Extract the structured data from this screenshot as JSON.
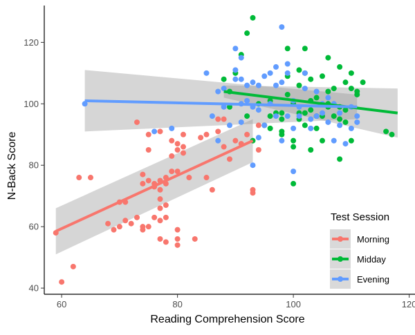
{
  "chart_data": {
    "type": "scatter",
    "title": "",
    "xlabel": "Reading Comprehension Score",
    "ylabel": "N-Back Score",
    "xlim": [
      57,
      121
    ],
    "ylim": [
      38,
      132
    ],
    "x_ticks": [
      60,
      80,
      100,
      120
    ],
    "y_ticks": [
      40,
      60,
      80,
      100,
      120
    ],
    "grid": false,
    "legend_position": "bottom-right",
    "legend_title": "Test Session",
    "series": [
      {
        "name": "Morning",
        "color": "#F8766D",
        "points": [
          [
            59,
            58
          ],
          [
            60,
            42
          ],
          [
            62,
            47
          ],
          [
            63,
            76
          ],
          [
            65,
            76
          ],
          [
            68,
            61
          ],
          [
            69,
            59
          ],
          [
            70,
            68
          ],
          [
            70,
            60
          ],
          [
            71,
            68
          ],
          [
            71,
            62
          ],
          [
            72,
            61
          ],
          [
            73,
            63
          ],
          [
            73,
            94
          ],
          [
            74,
            74
          ],
          [
            74,
            77
          ],
          [
            74,
            60
          ],
          [
            74,
            59
          ],
          [
            75,
            85
          ],
          [
            75,
            90
          ],
          [
            75,
            75
          ],
          [
            75,
            60
          ],
          [
            76,
            63
          ],
          [
            76,
            73
          ],
          [
            76,
            74
          ],
          [
            77,
            75
          ],
          [
            77,
            72
          ],
          [
            77,
            66
          ],
          [
            77,
            62
          ],
          [
            77,
            56
          ],
          [
            77,
            69
          ],
          [
            77,
            91
          ],
          [
            78,
            74
          ],
          [
            78,
            76
          ],
          [
            78,
            67
          ],
          [
            78,
            63
          ],
          [
            78,
            55
          ],
          [
            79,
            78
          ],
          [
            79,
            88
          ],
          [
            79,
            83
          ],
          [
            80,
            59
          ],
          [
            80,
            56
          ],
          [
            80,
            54
          ],
          [
            80,
            87
          ],
          [
            80,
            85
          ],
          [
            80,
            78
          ],
          [
            81,
            86
          ],
          [
            81,
            90
          ],
          [
            81,
            84
          ],
          [
            82,
            76
          ],
          [
            83,
            56
          ],
          [
            84,
            89
          ],
          [
            85,
            90
          ],
          [
            85,
            76
          ],
          [
            86,
            72
          ],
          [
            87,
            91
          ],
          [
            87,
            95
          ],
          [
            88,
            95
          ],
          [
            88,
            86
          ],
          [
            89,
            82
          ],
          [
            90,
            88
          ],
          [
            91,
            87
          ],
          [
            92,
            90
          ],
          [
            93,
            72
          ],
          [
            93,
            71
          ],
          [
            94,
            93
          ],
          [
            94,
            85
          ]
        ],
        "trend": {
          "x": [
            59,
            93
          ],
          "y": [
            58.5,
            88
          ]
        },
        "ci_band": {
          "x": [
            59,
            93
          ],
          "lower": [
            51,
            81
          ],
          "upper": [
            66,
            95
          ]
        }
      },
      {
        "name": "Midday",
        "color": "#00BA38",
        "points": [
          [
            88,
            108
          ],
          [
            89,
            104
          ],
          [
            89,
            99
          ],
          [
            90,
            110
          ],
          [
            91,
            116
          ],
          [
            92,
            123
          ],
          [
            92,
            96
          ],
          [
            93,
            88
          ],
          [
            93,
            128
          ],
          [
            94,
            100
          ],
          [
            95,
            93
          ],
          [
            96,
            96
          ],
          [
            96,
            92
          ],
          [
            96,
            101
          ],
          [
            97,
            97
          ],
          [
            98,
            95
          ],
          [
            98,
            91
          ],
          [
            98,
            90
          ],
          [
            98,
            97
          ],
          [
            99,
            118
          ],
          [
            99,
            109
          ],
          [
            99,
            103
          ],
          [
            100,
            86
          ],
          [
            100,
            100
          ],
          [
            100,
            74
          ],
          [
            100,
            88
          ],
          [
            101,
            111
          ],
          [
            101,
            95
          ],
          [
            101,
            97
          ],
          [
            101,
            106
          ],
          [
            102,
            110
          ],
          [
            102,
            118
          ],
          [
            102,
            93
          ],
          [
            102,
            97
          ],
          [
            103,
            108
          ],
          [
            103,
            101
          ],
          [
            103,
            85
          ],
          [
            103,
            98
          ],
          [
            104,
            92
          ],
          [
            104,
            102
          ],
          [
            104,
            96
          ],
          [
            105,
            96
          ],
          [
            105,
            88
          ],
          [
            105,
            109
          ],
          [
            106,
            104
          ],
          [
            106,
            99
          ],
          [
            106,
            115
          ],
          [
            106,
            100
          ],
          [
            107,
            105
          ],
          [
            107,
            96
          ],
          [
            108,
            99
          ],
          [
            108,
            112
          ],
          [
            108,
            95
          ],
          [
            108,
            82
          ],
          [
            109,
            107
          ],
          [
            109,
            98
          ],
          [
            109,
            94
          ],
          [
            110,
            110
          ],
          [
            110,
            105
          ],
          [
            110,
            88
          ],
          [
            111,
            103
          ],
          [
            111,
            104
          ],
          [
            112,
            107
          ],
          [
            116,
            91
          ],
          [
            117,
            90
          ]
        ],
        "trend": {
          "x": [
            88,
            118
          ],
          "y": [
            104,
            97
          ]
        },
        "ci_band": {
          "x": [
            88,
            118
          ],
          "lower": [
            102,
            89
          ],
          "upper": [
            106,
            105
          ]
        }
      },
      {
        "name": "Evening",
        "color": "#619CFF",
        "points": [
          [
            64,
            100
          ],
          [
            76,
            91
          ],
          [
            79,
            92
          ],
          [
            85,
            110
          ],
          [
            86,
            96
          ],
          [
            87,
            88
          ],
          [
            87,
            104
          ],
          [
            88,
            105
          ],
          [
            88,
            99
          ],
          [
            89,
            93
          ],
          [
            90,
            111
          ],
          [
            90,
            118
          ],
          [
            90,
            108
          ],
          [
            91,
            108
          ],
          [
            91,
            94
          ],
          [
            91,
            115
          ],
          [
            91,
            100
          ],
          [
            92,
            106
          ],
          [
            92,
            101
          ],
          [
            93,
            107
          ],
          [
            93,
            99
          ],
          [
            93,
            80
          ],
          [
            94,
            98
          ],
          [
            94,
            89
          ],
          [
            94,
            106
          ],
          [
            95,
            109
          ],
          [
            95,
            93
          ],
          [
            96,
            100
          ],
          [
            96,
            110
          ],
          [
            97,
            106
          ],
          [
            97,
            112
          ],
          [
            97,
            96
          ],
          [
            98,
            107
          ],
          [
            98,
            125
          ],
          [
            98,
            88
          ],
          [
            99,
            110
          ],
          [
            99,
            113
          ],
          [
            99,
            96
          ],
          [
            100,
            101
          ],
          [
            100,
            78
          ],
          [
            100,
            92
          ],
          [
            101,
            96
          ],
          [
            101,
            99
          ],
          [
            102,
            110
          ],
          [
            102,
            105
          ],
          [
            103,
            95
          ],
          [
            103,
            92
          ],
          [
            104,
            104
          ],
          [
            104,
            96
          ],
          [
            105,
            100
          ],
          [
            105,
            97
          ],
          [
            106,
            102
          ],
          [
            106,
            94
          ],
          [
            107,
            88
          ],
          [
            107,
            100
          ],
          [
            108,
            93
          ],
          [
            108,
            97
          ],
          [
            109,
            87
          ],
          [
            110,
            92
          ],
          [
            110,
            99
          ],
          [
            111,
            96
          ],
          [
            111,
            94
          ]
        ],
        "trend": {
          "x": [
            64,
            111
          ],
          "y": [
            101,
            99
          ]
        },
        "ci_band": {
          "x": [
            64,
            111
          ],
          "lower": [
            91,
            95
          ],
          "upper": [
            111,
            103
          ]
        }
      }
    ]
  }
}
